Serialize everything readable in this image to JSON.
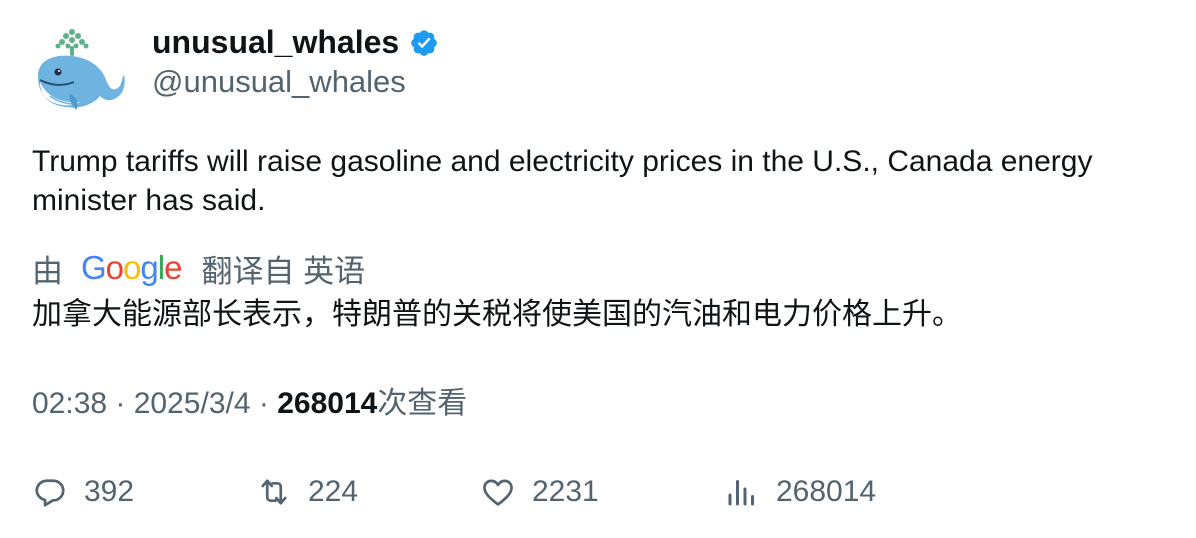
{
  "author": {
    "display_name": "unusual_whales",
    "handle": "@unusual_whales",
    "avatar_icon": "whale-icon",
    "verified_icon": "verified-badge-icon",
    "verified_color": "#1d9bf0"
  },
  "tweet": {
    "text": "Trump tariffs will raise gasoline and electricity prices in the U.S., Canada energy minister has said."
  },
  "translation": {
    "prefix": "由",
    "provider": "Google",
    "suffix": "翻译自 英语",
    "text": "加拿大能源部长表示，特朗普的关税将使美国的汽油和电力价格上升。"
  },
  "meta": {
    "time": "02:38",
    "separator": "·",
    "date": "2025/3/4",
    "views_count": "268014",
    "views_label": "次查看"
  },
  "actions": {
    "reply_count": "392",
    "retweet_count": "224",
    "like_count": "2231",
    "views_count": "268014"
  },
  "colors": {
    "text_primary": "#0f1419",
    "text_secondary": "#536471",
    "google_blue": "#4285f4",
    "google_red": "#ea4335",
    "google_yellow": "#fbbc05",
    "google_green": "#34a853"
  }
}
